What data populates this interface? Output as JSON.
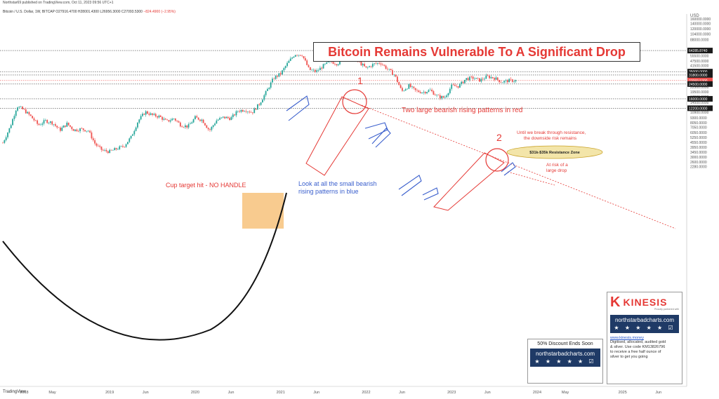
{
  "header": {
    "published": "Northstar69 published on TradingView.com, Oct 11, 2023 09:56 UTC+1",
    "symbol": "Bitcoin / U.S. Dollar, 1W, BITCAP",
    "ohlc": "O27916.4700 H28001.4300 L26956.3000 C27093.5300",
    "change": "−824.4900 (−2.95%)"
  },
  "footer": {
    "brand": "TradingView"
  },
  "title": "Bitcoin Remains Vulnerable To A Significant Drop",
  "annotations": {
    "cup": "Cup target hit - NO HANDLE",
    "blue_line1": "Look at all the small bearish",
    "blue_line2": "rising patterns in blue",
    "red_patterns": "Two large bearish rising patterns in red",
    "marker1": "1",
    "marker2": "2",
    "resistance_line1": "Until we break through resistance,",
    "resistance_line2": "the downside risk remains",
    "zone": "$31k-$35k Resistance Zone",
    "risk_line1": "At risk of a",
    "risk_line2": "large drop"
  },
  "kinesis": {
    "name": "KINESIS",
    "tagline": "Proudly partnered with",
    "site": "northstarbadcharts.com",
    "stars": "★ ★ ★ ★ ★ ☑",
    "url": "www.kinesis.money",
    "promo1": "Digitised, allocated, audited gold",
    "promo2": "& silver. Use code KM13826796",
    "promo3": "to receive a free half ounce of",
    "promo4": "silver to get you going"
  },
  "discount": {
    "headline": "50% Discount Ends Soon",
    "site": "northstarbadcharts.com",
    "stars": "★ ★ ★ ★ ★ ☑"
  },
  "colors": {
    "up": "#26a69a",
    "down": "#ef5350",
    "annotation_red": "#e53935",
    "annotation_blue": "#3a5fcd",
    "cup_target": "#f5b96a",
    "zone_fill": "#f3e5a9"
  },
  "chart_data": {
    "type": "line",
    "title": "Bitcoin Remains Vulnerable To A Significant Drop",
    "xlabel": "",
    "ylabel": "",
    "y_unit": "USD",
    "y_scale": "log",
    "ylim": [
      2000,
      200000
    ],
    "x_ticks": [
      "2018",
      "May",
      "2019",
      "Jun",
      "2020",
      "Jun",
      "2021",
      "Jun",
      "2022",
      "Jun",
      "2023",
      "Jun",
      "2024",
      "May",
      "2025",
      "Jun"
    ],
    "y_ticks": [
      "160000.0000",
      "140000.0000",
      "120000.0000",
      "104000.0000",
      "88000.0000",
      "64285.8740",
      "55500.0000",
      "47500.0000",
      "41500.0000",
      "35000.0000",
      "31800.0000",
      "27093.5300",
      "24500.0000",
      "22500.0000",
      "19500.0000",
      "17000.0000",
      "16000.0000",
      "14500.0000",
      "12200.0000",
      "10900.0000",
      "9300.0000",
      "8050.0000",
      "7050.0000",
      "6050.0000",
      "5250.0000",
      "4550.0000",
      "3950.0000",
      "3450.0000",
      "3000.0000",
      "2600.0000",
      "2280.0000"
    ],
    "highlighted_levels": [
      {
        "label": "64285.8740",
        "value": 64285.874,
        "color": "#1b1b1b"
      },
      {
        "label": "35000.0000",
        "value": 35000,
        "color": "#1b1b1b"
      },
      {
        "label": "31800.0000",
        "value": 31800,
        "color": "#1b1b1b"
      },
      {
        "label": "27093.5300",
        "value": 27093.53,
        "color": "#ef5350"
      },
      {
        "label": "24500.0000",
        "value": 24500,
        "color": "#1b1b1b"
      },
      {
        "label": "16000.0000",
        "value": 16000,
        "color": "#1b1b1b"
      },
      {
        "label": "12200.0000",
        "value": 12200,
        "color": "#1b1b1b"
      }
    ],
    "series": [
      {
        "values": [
          [
            "2017-10",
            4500
          ],
          [
            "2017-11",
            7000
          ],
          [
            "2017-12",
            13000
          ],
          [
            "2018-01",
            11500
          ],
          [
            "2018-02",
            9500
          ],
          [
            "2018-03",
            7500
          ],
          [
            "2018-04",
            8500
          ],
          [
            "2018-05",
            8000
          ],
          [
            "2018-06",
            6500
          ],
          [
            "2018-07",
            7800
          ],
          [
            "2018-08",
            6500
          ],
          [
            "2018-09",
            6700
          ],
          [
            "2018-10",
            6400
          ],
          [
            "2018-11",
            4300
          ],
          [
            "2018-12",
            3600
          ],
          [
            "2019-01",
            3500
          ],
          [
            "2019-02",
            3800
          ],
          [
            "2019-03",
            4100
          ],
          [
            "2019-04",
            5300
          ],
          [
            "2019-05",
            8500
          ],
          [
            "2019-06",
            11000
          ],
          [
            "2019-07",
            10000
          ],
          [
            "2019-08",
            9600
          ],
          [
            "2019-09",
            8300
          ],
          [
            "2019-10",
            9100
          ],
          [
            "2019-11",
            7500
          ],
          [
            "2019-12",
            7200
          ],
          [
            "2020-01",
            9300
          ],
          [
            "2020-02",
            8700
          ],
          [
            "2020-03",
            6400
          ],
          [
            "2020-04",
            8600
          ],
          [
            "2020-05",
            9400
          ],
          [
            "2020-06",
            9100
          ],
          [
            "2020-07",
            11300
          ],
          [
            "2020-08",
            11700
          ],
          [
            "2020-09",
            10800
          ],
          [
            "2020-10",
            13800
          ],
          [
            "2020-11",
            19700
          ],
          [
            "2020-12",
            29000
          ],
          [
            "2021-01",
            33000
          ],
          [
            "2021-02",
            45000
          ],
          [
            "2021-03",
            58000
          ],
          [
            "2021-04",
            57000
          ],
          [
            "2021-05",
            37000
          ],
          [
            "2021-06",
            35000
          ],
          [
            "2021-07",
            41500
          ],
          [
            "2021-08",
            47000
          ],
          [
            "2021-09",
            43800
          ],
          [
            "2021-10",
            61300
          ],
          [
            "2021-11",
            57000
          ],
          [
            "2021-12",
            46300
          ],
          [
            "2022-01",
            38500
          ],
          [
            "2022-02",
            43200
          ],
          [
            "2022-03",
            45500
          ],
          [
            "2022-04",
            37700
          ],
          [
            "2022-05",
            31800
          ],
          [
            "2022-06",
            19800
          ],
          [
            "2022-07",
            23300
          ],
          [
            "2022-08",
            20000
          ],
          [
            "2022-09",
            19400
          ],
          [
            "2022-10",
            20500
          ],
          [
            "2022-11",
            17200
          ],
          [
            "2022-12",
            16500
          ],
          [
            "2023-01",
            23100
          ],
          [
            "2023-02",
            23100
          ],
          [
            "2023-03",
            28500
          ],
          [
            "2023-04",
            29200
          ],
          [
            "2023-05",
            27200
          ],
          [
            "2023-06",
            30500
          ],
          [
            "2023-07",
            29200
          ],
          [
            "2023-08",
            26000
          ],
          [
            "2023-09",
            27000
          ],
          [
            "2023-10",
            27093.53
          ]
        ]
      }
    ],
    "legend": "none",
    "grid": "off"
  }
}
